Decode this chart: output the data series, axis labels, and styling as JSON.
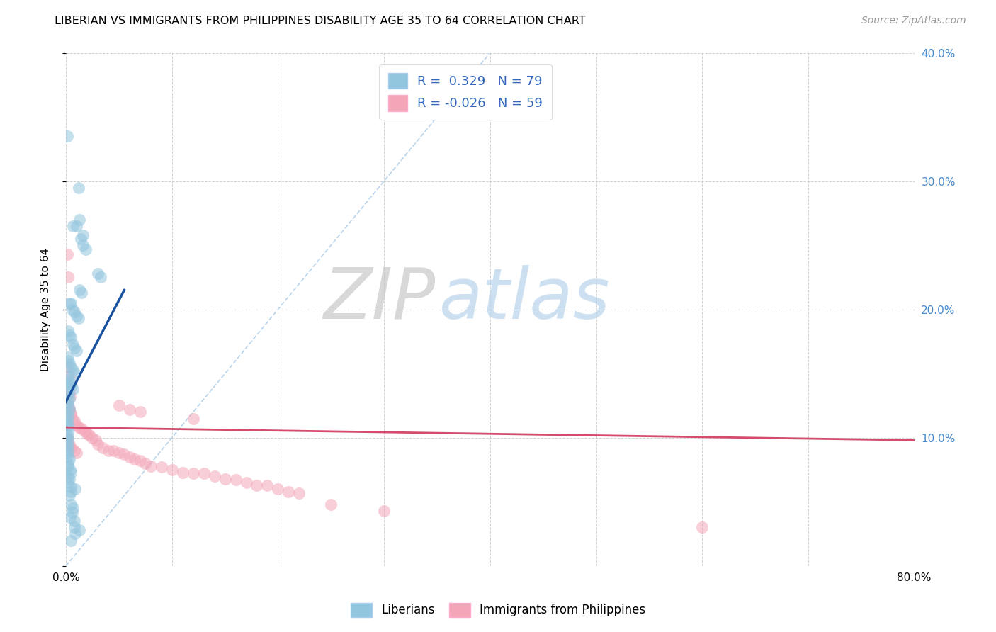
{
  "title": "LIBERIAN VS IMMIGRANTS FROM PHILIPPINES DISABILITY AGE 35 TO 64 CORRELATION CHART",
  "source": "Source: ZipAtlas.com",
  "ylabel": "Disability Age 35 to 64",
  "xlim": [
    0.0,
    0.8
  ],
  "ylim": [
    0.0,
    0.4
  ],
  "xticks": [
    0.0,
    0.1,
    0.2,
    0.3,
    0.4,
    0.5,
    0.6,
    0.7,
    0.8
  ],
  "yticks": [
    0.0,
    0.1,
    0.2,
    0.3,
    0.4
  ],
  "blue_color": "#92c5de",
  "pink_color": "#f4a6b8",
  "blue_line_color": "#1a52a0",
  "pink_line_color": "#d44b6e",
  "diagonal_color": "#b8d4ec",
  "watermark_zip": "ZIP",
  "watermark_atlas": "atlas",
  "blue_R": 0.329,
  "pink_R": -0.026,
  "blue_N": 79,
  "pink_N": 59,
  "blue_scatter": [
    [
      0.001,
      0.335
    ],
    [
      0.012,
      0.295
    ],
    [
      0.01,
      0.265
    ],
    [
      0.013,
      0.27
    ],
    [
      0.016,
      0.258
    ],
    [
      0.014,
      0.255
    ],
    [
      0.016,
      0.25
    ],
    [
      0.019,
      0.247
    ],
    [
      0.007,
      0.265
    ],
    [
      0.033,
      0.225
    ],
    [
      0.03,
      0.228
    ],
    [
      0.013,
      0.215
    ],
    [
      0.015,
      0.213
    ],
    [
      0.003,
      0.205
    ],
    [
      0.005,
      0.205
    ],
    [
      0.006,
      0.2
    ],
    [
      0.008,
      0.198
    ],
    [
      0.01,
      0.195
    ],
    [
      0.012,
      0.193
    ],
    [
      0.002,
      0.183
    ],
    [
      0.003,
      0.18
    ],
    [
      0.005,
      0.178
    ],
    [
      0.007,
      0.173
    ],
    [
      0.008,
      0.17
    ],
    [
      0.01,
      0.168
    ],
    [
      0.001,
      0.163
    ],
    [
      0.002,
      0.16
    ],
    [
      0.003,
      0.158
    ],
    [
      0.005,
      0.155
    ],
    [
      0.007,
      0.153
    ],
    [
      0.009,
      0.15
    ],
    [
      0.001,
      0.148
    ],
    [
      0.002,
      0.145
    ],
    [
      0.003,
      0.143
    ],
    [
      0.004,
      0.142
    ],
    [
      0.005,
      0.14
    ],
    [
      0.007,
      0.138
    ],
    [
      0.001,
      0.135
    ],
    [
      0.002,
      0.133
    ],
    [
      0.003,
      0.13
    ],
    [
      0.001,
      0.128
    ],
    [
      0.002,
      0.125
    ],
    [
      0.003,
      0.122
    ],
    [
      0.001,
      0.12
    ],
    [
      0.002,
      0.117
    ],
    [
      0.001,
      0.115
    ],
    [
      0.001,
      0.112
    ],
    [
      0.002,
      0.11
    ],
    [
      0.001,
      0.108
    ],
    [
      0.002,
      0.105
    ],
    [
      0.001,
      0.102
    ],
    [
      0.001,
      0.1
    ],
    [
      0.002,
      0.098
    ],
    [
      0.001,
      0.095
    ],
    [
      0.001,
      0.093
    ],
    [
      0.002,
      0.09
    ],
    [
      0.001,
      0.088
    ],
    [
      0.001,
      0.085
    ],
    [
      0.003,
      0.083
    ],
    [
      0.002,
      0.08
    ],
    [
      0.002,
      0.078
    ],
    [
      0.004,
      0.075
    ],
    [
      0.005,
      0.073
    ],
    [
      0.002,
      0.07
    ],
    [
      0.003,
      0.068
    ],
    [
      0.002,
      0.065
    ],
    [
      0.005,
      0.062
    ],
    [
      0.009,
      0.06
    ],
    [
      0.005,
      0.058
    ],
    [
      0.003,
      0.055
    ],
    [
      0.005,
      0.048
    ],
    [
      0.007,
      0.045
    ],
    [
      0.006,
      0.042
    ],
    [
      0.004,
      0.038
    ],
    [
      0.008,
      0.035
    ],
    [
      0.008,
      0.03
    ],
    [
      0.013,
      0.028
    ],
    [
      0.009,
      0.025
    ],
    [
      0.005,
      0.02
    ]
  ],
  "pink_scatter": [
    [
      0.001,
      0.243
    ],
    [
      0.002,
      0.225
    ],
    [
      0.001,
      0.155
    ],
    [
      0.003,
      0.148
    ],
    [
      0.003,
      0.135
    ],
    [
      0.004,
      0.132
    ],
    [
      0.002,
      0.127
    ],
    [
      0.002,
      0.125
    ],
    [
      0.003,
      0.123
    ],
    [
      0.004,
      0.12
    ],
    [
      0.005,
      0.118
    ],
    [
      0.006,
      0.115
    ],
    [
      0.008,
      0.113
    ],
    [
      0.01,
      0.11
    ],
    [
      0.012,
      0.108
    ],
    [
      0.015,
      0.107
    ],
    [
      0.018,
      0.105
    ],
    [
      0.02,
      0.103
    ],
    [
      0.022,
      0.102
    ],
    [
      0.025,
      0.1
    ],
    [
      0.028,
      0.098
    ],
    [
      0.03,
      0.095
    ],
    [
      0.035,
      0.092
    ],
    [
      0.04,
      0.09
    ],
    [
      0.045,
      0.09
    ],
    [
      0.05,
      0.088
    ],
    [
      0.055,
      0.087
    ],
    [
      0.06,
      0.085
    ],
    [
      0.065,
      0.083
    ],
    [
      0.07,
      0.082
    ],
    [
      0.075,
      0.08
    ],
    [
      0.08,
      0.078
    ],
    [
      0.09,
      0.077
    ],
    [
      0.1,
      0.075
    ],
    [
      0.11,
      0.073
    ],
    [
      0.12,
      0.072
    ],
    [
      0.13,
      0.072
    ],
    [
      0.14,
      0.07
    ],
    [
      0.15,
      0.068
    ],
    [
      0.16,
      0.067
    ],
    [
      0.17,
      0.065
    ],
    [
      0.18,
      0.063
    ],
    [
      0.19,
      0.063
    ],
    [
      0.2,
      0.06
    ],
    [
      0.21,
      0.058
    ],
    [
      0.22,
      0.057
    ],
    [
      0.001,
      0.1
    ],
    [
      0.002,
      0.098
    ],
    [
      0.003,
      0.095
    ],
    [
      0.005,
      0.092
    ],
    [
      0.008,
      0.09
    ],
    [
      0.01,
      0.088
    ],
    [
      0.05,
      0.125
    ],
    [
      0.06,
      0.122
    ],
    [
      0.07,
      0.12
    ],
    [
      0.12,
      0.115
    ],
    [
      0.25,
      0.048
    ],
    [
      0.3,
      0.043
    ],
    [
      0.6,
      0.03
    ]
  ],
  "blue_line": [
    [
      0.0,
      0.128
    ],
    [
      0.055,
      0.215
    ]
  ],
  "pink_line": [
    [
      0.0,
      0.108
    ],
    [
      0.8,
      0.098
    ]
  ]
}
